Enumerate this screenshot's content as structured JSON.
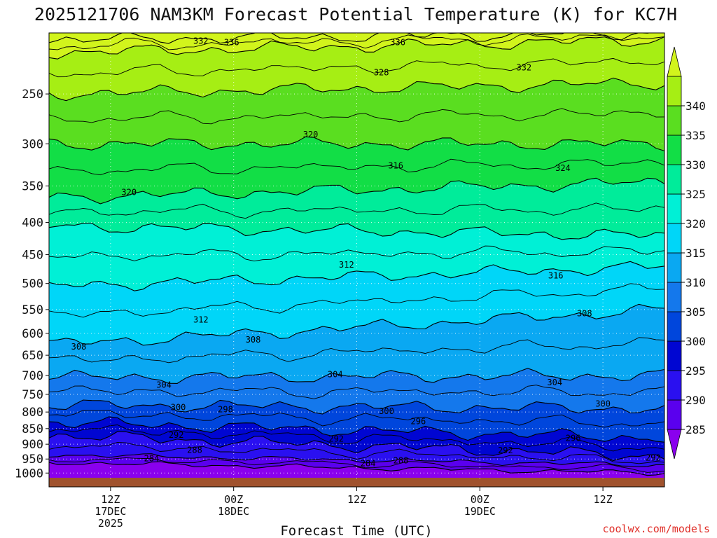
{
  "chart_data": {
    "type": "heatmap",
    "title": "2025121706 NAM3KM Forecast Potential Temperature (K) for KC7H",
    "xlabel": "Forecast Time (UTC)",
    "ylabel": "",
    "credit": "coolwx.com/models",
    "y_axis": {
      "scale": "log",
      "unit": "hPa",
      "range": [
        1020,
        200
      ],
      "ticks": [
        250,
        300,
        350,
        400,
        450,
        500,
        550,
        600,
        650,
        700,
        750,
        800,
        850,
        900,
        950,
        1000
      ]
    },
    "x_axis": {
      "range_hours_from_start": [
        0,
        60
      ],
      "ticks": [
        {
          "hour": 6,
          "lines": [
            "12Z",
            "17DEC",
            "2025"
          ]
        },
        {
          "hour": 18,
          "lines": [
            "00Z",
            "18DEC"
          ]
        },
        {
          "hour": 30,
          "lines": [
            "12Z"
          ]
        },
        {
          "hour": 42,
          "lines": [
            "00Z",
            "19DEC"
          ]
        },
        {
          "hour": 54,
          "lines": [
            "12Z"
          ]
        }
      ]
    },
    "colorbar": {
      "levels": [
        285,
        290,
        295,
        300,
        305,
        310,
        315,
        320,
        325,
        330,
        335,
        340
      ],
      "colors": [
        "#8a00ee",
        "#5a00ee",
        "#2a10f0",
        "#0006d2",
        "#0046dc",
        "#1478ec",
        "#0aa8f2",
        "#00d6f8",
        "#00f0d6",
        "#00ec9a",
        "#12de46",
        "#5ade20",
        "#a6ee14",
        "#d2f41c"
      ]
    },
    "isentropes": [
      {
        "theta": 284,
        "p_start": 962,
        "p_end": 1000
      },
      {
        "theta": 288,
        "p_start": 935,
        "p_end": 972
      },
      {
        "theta": 292,
        "p_start": 870,
        "p_end": 940
      },
      {
        "theta": 296,
        "p_start": 830,
        "p_end": 880
      },
      {
        "theta": 300,
        "p_start": 780,
        "p_end": 790
      },
      {
        "theta": 304,
        "p_start": 705,
        "p_end": 700
      },
      {
        "theta": 308,
        "p_start": 625,
        "p_end": 550
      },
      {
        "theta": 312,
        "p_start": 505,
        "p_end": 470
      },
      {
        "theta": 316,
        "p_start": 405,
        "p_end": 420
      },
      {
        "theta": 320,
        "p_start": 365,
        "p_end": 345
      },
      {
        "theta": 324,
        "p_start": 300,
        "p_end": 300
      },
      {
        "theta": 328,
        "p_start": 250,
        "p_end": 240
      },
      {
        "theta": 332,
        "p_start": 215,
        "p_end": 205
      },
      {
        "theta": 336,
        "p_start": 205,
        "p_end": 200
      }
    ],
    "contour_labels": [
      {
        "text": "332",
        "hour": 14.8,
        "p": 206
      },
      {
        "text": "336",
        "hour": 17.8,
        "p": 207
      },
      {
        "text": "336",
        "hour": 34.0,
        "p": 207
      },
      {
        "text": "328",
        "hour": 32.4,
        "p": 231
      },
      {
        "text": "332",
        "hour": 46.3,
        "p": 227
      },
      {
        "text": "320",
        "hour": 25.5,
        "p": 290
      },
      {
        "text": "324",
        "hour": 50.1,
        "p": 328
      },
      {
        "text": "316",
        "hour": 33.8,
        "p": 325
      },
      {
        "text": "320",
        "hour": 7.8,
        "p": 358
      },
      {
        "text": "312",
        "hour": 29.0,
        "p": 467
      },
      {
        "text": "316",
        "hour": 49.4,
        "p": 486
      },
      {
        "text": "312",
        "hour": 14.8,
        "p": 571
      },
      {
        "text": "308",
        "hour": 52.2,
        "p": 558
      },
      {
        "text": "308",
        "hour": 19.9,
        "p": 614
      },
      {
        "text": "308",
        "hour": 2.9,
        "p": 630
      },
      {
        "text": "304",
        "hour": 27.9,
        "p": 697
      },
      {
        "text": "304",
        "hour": 49.3,
        "p": 718
      },
      {
        "text": "304",
        "hour": 11.2,
        "p": 725
      },
      {
        "text": "300",
        "hour": 12.6,
        "p": 786
      },
      {
        "text": "298",
        "hour": 17.2,
        "p": 793
      },
      {
        "text": "300",
        "hour": 32.9,
        "p": 798
      },
      {
        "text": "300",
        "hour": 54.0,
        "p": 776
      },
      {
        "text": "296",
        "hour": 36.0,
        "p": 828
      },
      {
        "text": "292",
        "hour": 12.4,
        "p": 870
      },
      {
        "text": "292",
        "hour": 28.0,
        "p": 883
      },
      {
        "text": "296",
        "hour": 51.1,
        "p": 880
      },
      {
        "text": "288",
        "hour": 14.2,
        "p": 919
      },
      {
        "text": "292",
        "hour": 44.5,
        "p": 921
      },
      {
        "text": "288",
        "hour": 34.3,
        "p": 955
      },
      {
        "text": "284",
        "hour": 31.1,
        "p": 965
      },
      {
        "text": "284",
        "hour": 10.0,
        "p": 948
      },
      {
        "text": "292",
        "hour": 58.9,
        "p": 946
      }
    ]
  }
}
